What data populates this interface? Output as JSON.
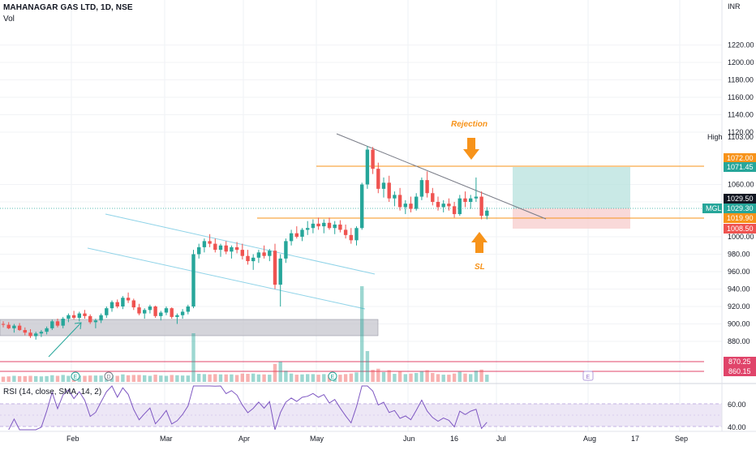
{
  "header": {
    "symbol_title": "MAHANAGAR GAS LTD, 1D, NSE",
    "volume_label": "Vol"
  },
  "price_axis": {
    "currency": "INR",
    "ticks": [
      "1220.00",
      "1200.00",
      "1180.00",
      "1160.00",
      "1140.00",
      "1120.00",
      "1060.00",
      "1040.00",
      "1000.00",
      "980.00",
      "960.00",
      "940.00",
      "920.00",
      "900.00",
      "880.00"
    ],
    "tick_values": [
      1220,
      1200,
      1180,
      1160,
      1140,
      1120,
      1060,
      1040,
      1000,
      980,
      960,
      940,
      920,
      900,
      880
    ]
  },
  "price_labels": {
    "high_label": "High",
    "high_value": "1103.00",
    "l1072": "1072.00",
    "l1071": "1071.45",
    "l1029_50": "1029.50",
    "symbol": "MGL",
    "l1029_30": "1029.30",
    "l1019": "1019.90",
    "l1008": "1008.50",
    "l870": "870.25",
    "l860": "860.15"
  },
  "annotations": {
    "rejection": "Rejection",
    "sl": "SL"
  },
  "event_markers": {
    "earnings": "E",
    "dividend": "D"
  },
  "rsi": {
    "label": "RSI (14, close, SMA, 14, 2)",
    "ticks": [
      "60.00",
      "40.00"
    ],
    "upper": 60,
    "lower": 40
  },
  "time_axis": {
    "labels": [
      "Feb",
      "Mar",
      "Apr",
      "May",
      "Jun",
      "16",
      "Jul",
      "Aug",
      "17",
      "Sep"
    ]
  },
  "colors": {
    "up": "#26a69a",
    "down": "#ef5350",
    "orange": "#f7931a",
    "gray_box": "#c5c5cd",
    "target_zone": "#b2dfdb",
    "stop_zone": "#f8cfcf",
    "channel": "#8fd3e8",
    "rsi_line": "#7e57c2",
    "rsi_band": "#ede7f6"
  },
  "chart_data": {
    "type": "candlestick",
    "price_range": [
      870,
      1230
    ],
    "candles": [
      [
        900,
        903,
        896,
        899
      ],
      [
        899,
        902,
        894,
        895
      ],
      [
        895,
        900,
        890,
        898
      ],
      [
        898,
        901,
        892,
        893
      ],
      [
        893,
        896,
        887,
        890
      ],
      [
        890,
        894,
        884,
        886
      ],
      [
        886,
        891,
        882,
        889
      ],
      [
        889,
        893,
        885,
        891
      ],
      [
        891,
        897,
        888,
        895
      ],
      [
        895,
        905,
        893,
        903
      ],
      [
        903,
        906,
        896,
        898
      ],
      [
        898,
        908,
        895,
        906
      ],
      [
        906,
        912,
        902,
        910
      ],
      [
        910,
        915,
        905,
        907
      ],
      [
        907,
        914,
        903,
        912
      ],
      [
        912,
        916,
        906,
        909
      ],
      [
        909,
        911,
        900,
        902
      ],
      [
        902,
        906,
        895,
        904
      ],
      [
        904,
        912,
        901,
        910
      ],
      [
        910,
        920,
        907,
        918
      ],
      [
        918,
        927,
        914,
        925
      ],
      [
        925,
        928,
        918,
        920
      ],
      [
        920,
        932,
        917,
        930
      ],
      [
        930,
        936,
        924,
        927
      ],
      [
        927,
        929,
        916,
        919
      ],
      [
        919,
        923,
        910,
        912
      ],
      [
        912,
        918,
        906,
        916
      ],
      [
        916,
        922,
        912,
        920
      ],
      [
        920,
        921,
        907,
        909
      ],
      [
        909,
        915,
        904,
        913
      ],
      [
        913,
        920,
        910,
        918
      ],
      [
        918,
        919,
        906,
        908
      ],
      [
        908,
        912,
        900,
        910
      ],
      [
        910,
        917,
        906,
        914
      ],
      [
        914,
        922,
        911,
        920
      ],
      [
        920,
        985,
        918,
        980
      ],
      [
        980,
        992,
        975,
        988
      ],
      [
        988,
        998,
        982,
        995
      ],
      [
        995,
        1003,
        988,
        992
      ],
      [
        992,
        998,
        982,
        985
      ],
      [
        985,
        992,
        977,
        990
      ],
      [
        990,
        995,
        980,
        983
      ],
      [
        983,
        990,
        975,
        988
      ],
      [
        988,
        994,
        981,
        985
      ],
      [
        985,
        992,
        974,
        978
      ],
      [
        978,
        985,
        968,
        972
      ],
      [
        972,
        980,
        962,
        976
      ],
      [
        976,
        985,
        970,
        982
      ],
      [
        982,
        990,
        975,
        978
      ],
      [
        978,
        986,
        972,
        984
      ],
      [
        984,
        992,
        940,
        945
      ],
      [
        945,
        980,
        920,
        975
      ],
      [
        975,
        998,
        970,
        995
      ],
      [
        995,
        1008,
        990,
        1004
      ],
      [
        1004,
        1012,
        998,
        1000
      ],
      [
        1000,
        1010,
        995,
        1008
      ],
      [
        1008,
        1018,
        1002,
        1010
      ],
      [
        1010,
        1020,
        1004,
        1015
      ],
      [
        1015,
        1022,
        1008,
        1012
      ],
      [
        1012,
        1020,
        1004,
        1016
      ],
      [
        1016,
        1022,
        1008,
        1010
      ],
      [
        1010,
        1018,
        1003,
        1014
      ],
      [
        1014,
        1019,
        1005,
        1008
      ],
      [
        1008,
        1014,
        998,
        1002
      ],
      [
        1002,
        1010,
        992,
        996
      ],
      [
        996,
        1012,
        990,
        1010
      ],
      [
        1010,
        1062,
        1008,
        1060
      ],
      [
        1060,
        1104,
        1055,
        1100
      ],
      [
        1100,
        1103,
        1072,
        1078
      ],
      [
        1078,
        1085,
        1050,
        1055
      ],
      [
        1055,
        1068,
        1045,
        1062
      ],
      [
        1062,
        1070,
        1040,
        1044
      ],
      [
        1044,
        1052,
        1035,
        1048
      ],
      [
        1048,
        1056,
        1030,
        1034
      ],
      [
        1034,
        1042,
        1026,
        1038
      ],
      [
        1038,
        1046,
        1028,
        1032
      ],
      [
        1032,
        1050,
        1030,
        1046
      ],
      [
        1046,
        1068,
        1042,
        1065
      ],
      [
        1065,
        1075,
        1045,
        1050
      ],
      [
        1050,
        1056,
        1036,
        1040
      ],
      [
        1040,
        1046,
        1030,
        1034
      ],
      [
        1034,
        1042,
        1028,
        1038
      ],
      [
        1038,
        1044,
        1030,
        1035
      ],
      [
        1035,
        1040,
        1022,
        1026
      ],
      [
        1026,
        1048,
        1024,
        1044
      ],
      [
        1044,
        1052,
        1034,
        1040
      ],
      [
        1040,
        1048,
        1032,
        1044
      ],
      [
        1044,
        1068,
        1040,
        1046
      ],
      [
        1046,
        1052,
        1020,
        1024
      ],
      [
        1024,
        1034,
        1020,
        1030
      ]
    ]
  }
}
